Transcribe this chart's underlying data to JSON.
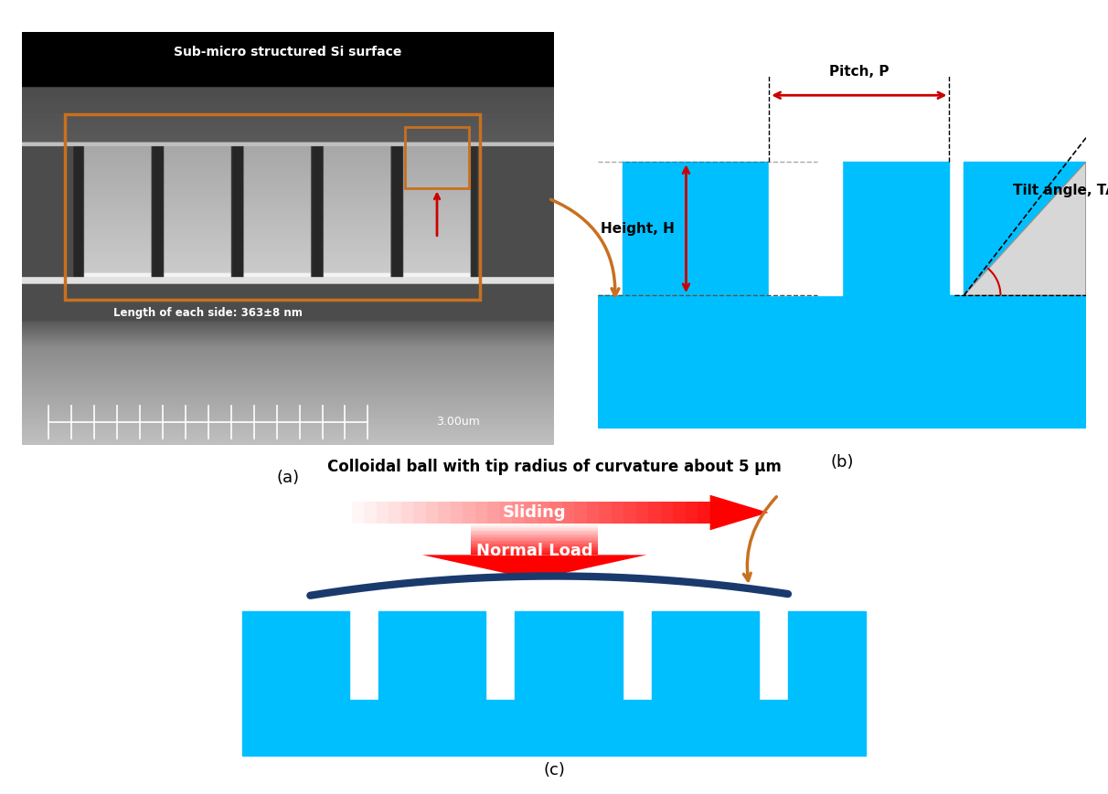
{
  "bg_color": "#ffffff",
  "cyan_color": "#00BFFF",
  "dark_navy": "#1a3a6e",
  "red_color": "#cc0000",
  "orange_color": "#c87020",
  "panel_a_label": "(a)",
  "panel_b_label": "(b)",
  "panel_c_label": "(c)",
  "sem_title": "Sub-micro structured Si surface",
  "sem_scale": "3.00um",
  "sem_measure": "Length of each side: 363±8 nm",
  "b_pitch_label": "Pitch, P",
  "b_height_label": "Height, H",
  "b_tilt_label": "Tilt angle, TA",
  "c_title": "Colloidal ball with tip radius of curvature about 5 μm",
  "c_sliding": "Sliding",
  "c_normal": "Normal Load"
}
